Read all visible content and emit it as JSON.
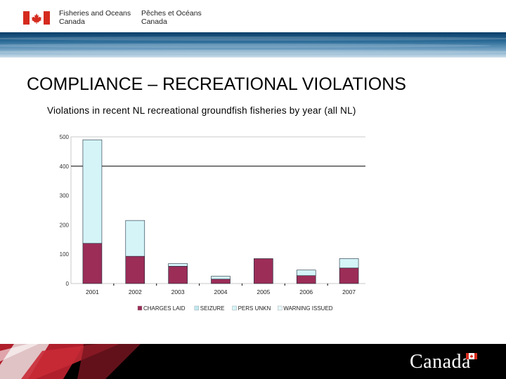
{
  "header": {
    "dept_en_line1": "Fisheries and Oceans",
    "dept_en_line2": "Canada",
    "dept_fr_line1": "Pêches et Océans",
    "dept_fr_line2": "Canada",
    "flag_icon": "canada-flag-icon"
  },
  "slide": {
    "title": "COMPLIANCE – RECREATIONAL VIOLATIONS"
  },
  "footer": {
    "wordmark": "Canada"
  },
  "colors": {
    "charges_laid": "#9b2d57",
    "pers_unkn": "#d4f4f8",
    "bar_edge": "#1b2a3a",
    "accent_red": "#d52b1e"
  },
  "chart_data": {
    "type": "bar",
    "stacked": true,
    "title": "Violations in recent NL recreational groundfish fisheries by year (all NL)",
    "categories": [
      "2001",
      "2002",
      "2003",
      "2004",
      "2005",
      "2006",
      "2007"
    ],
    "series": [
      {
        "name": "CHARGES LAID",
        "values": [
          137,
          93,
          59,
          15,
          85,
          27,
          53
        ]
      },
      {
        "name": "SEIZURE",
        "values": [
          0,
          0,
          0,
          0,
          0,
          0,
          0
        ]
      },
      {
        "name": "PERS UNKN",
        "values": [
          353,
          122,
          9,
          10,
          0,
          19,
          32
        ]
      },
      {
        "name": "WARNING ISSUED",
        "values": [
          0,
          0,
          0,
          0,
          0,
          0,
          0
        ]
      }
    ],
    "ylim": [
      0,
      500
    ],
    "yticks": [
      "0",
      "100",
      "200",
      "300",
      "400",
      "500"
    ],
    "reference_line": 400,
    "legend_position": "bottom",
    "xlabel": "",
    "ylabel": ""
  }
}
